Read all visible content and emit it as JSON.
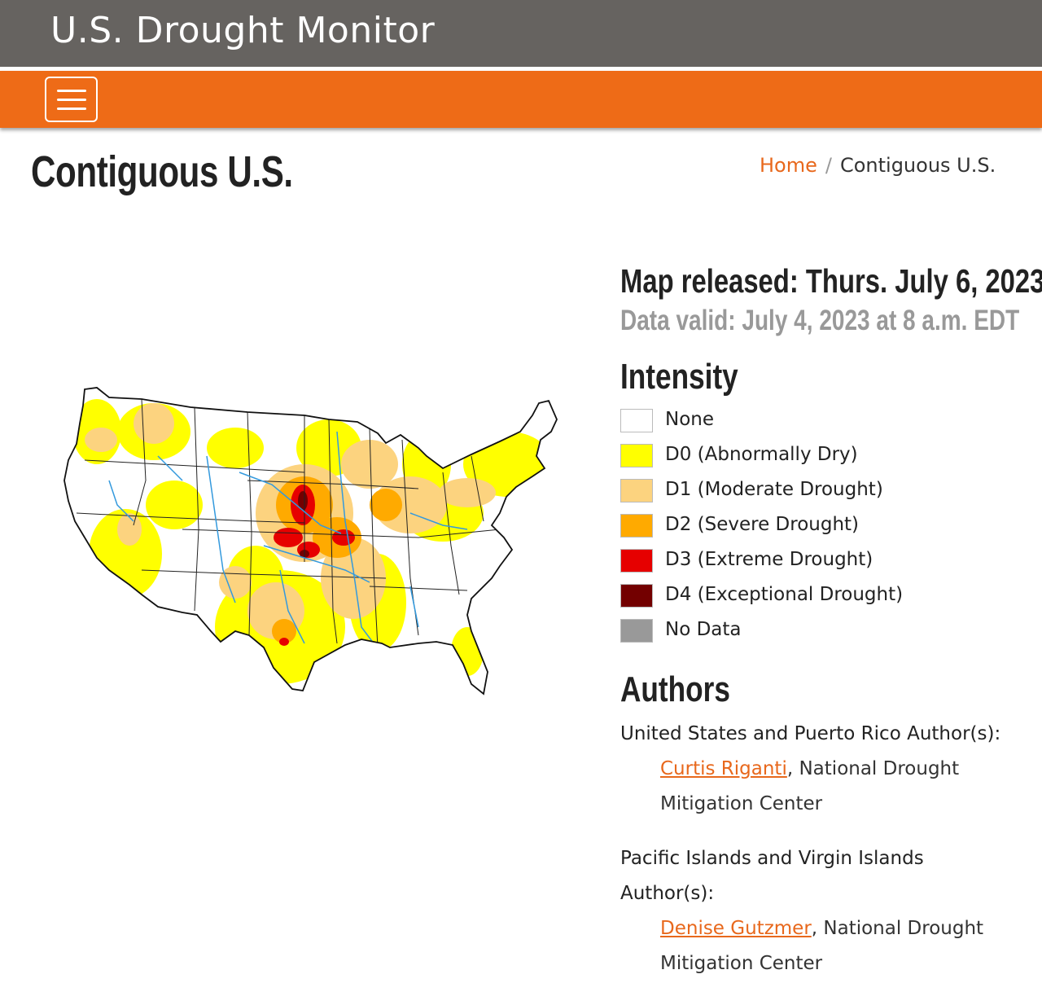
{
  "header": {
    "site_title": "U.S. Drought Monitor"
  },
  "page": {
    "title": "Contiguous U.S."
  },
  "breadcrumb": {
    "home": "Home",
    "separator": "/",
    "current": "Contiguous U.S."
  },
  "map_info": {
    "released": "Map released: Thurs. July 6, 2023",
    "valid": "Data valid: July 4, 2023 at 8 a.m. EDT"
  },
  "intensity": {
    "heading": "Intensity",
    "items": [
      {
        "code": "None",
        "desc": "",
        "color": "#ffffff"
      },
      {
        "code": "D0",
        "desc": "(Abnormally Dry)",
        "color": "#ffff00"
      },
      {
        "code": "D1",
        "desc": "(Moderate Drought)",
        "color": "#fcd37f"
      },
      {
        "code": "D2",
        "desc": "(Severe Drought)",
        "color": "#ffaa00"
      },
      {
        "code": "D3",
        "desc": "(Extreme Drought)",
        "color": "#e60000"
      },
      {
        "code": "D4",
        "desc": "(Exceptional Drought)",
        "color": "#730000"
      },
      {
        "code": "No Data",
        "desc": "",
        "color": "#999999"
      }
    ]
  },
  "authors": {
    "heading": "Authors",
    "us_label": "United States and Puerto Rico Author(s):",
    "us_author": {
      "name": "Curtis Riganti",
      "affiliation": ", National Drought",
      "affiliation_2": "Mitigation Center"
    },
    "pacific_label_1": "Pacific Islands and Virgin Islands",
    "pacific_label_2": "Author(s):",
    "pacific_author": {
      "name": "Denise Gutzmer",
      "affiliation": ", National Drought",
      "affiliation_2": "Mitigation Center"
    }
  },
  "colors": {
    "header_gray": "#666360",
    "nav_orange": "#ee6b17",
    "link_orange": "#e8681c",
    "river_blue": "#3399dd"
  }
}
